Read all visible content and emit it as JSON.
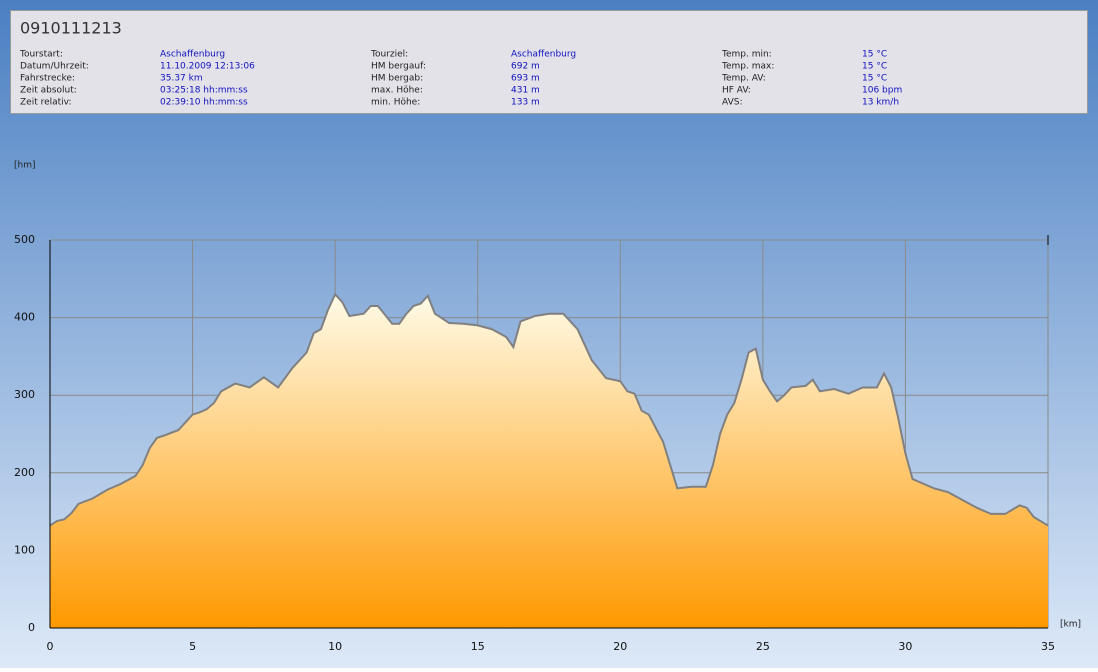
{
  "header": {
    "title": "0910111213",
    "columns": [
      [
        {
          "label": "Tourstart:",
          "value": "Aschaffenburg"
        },
        {
          "label": "Datum/Uhrzeit:",
          "value": "11.10.2009 12:13:06"
        },
        {
          "label": "Fahrstrecke:",
          "value": "35.37 km"
        },
        {
          "label": "Zeit absolut:",
          "value": "03:25:18 hh:mm:ss"
        },
        {
          "label": "Zeit relativ:",
          "value": "02:39:10 hh:mm:ss"
        }
      ],
      [
        {
          "label": "Tourziel:",
          "value": "Aschaffenburg"
        },
        {
          "label": "HM bergauf:",
          "value": "692 m"
        },
        {
          "label": "HM bergab:",
          "value": "693 m"
        },
        {
          "label": "max. Höhe:",
          "value": "431 m"
        },
        {
          "label": "min. Höhe:",
          "value": "133 m"
        }
      ],
      [
        {
          "label": "Temp. min:",
          "value": "15 °C"
        },
        {
          "label": "Temp. max:",
          "value": "15 °C"
        },
        {
          "label": "Temp. AV:",
          "value": "15 °C"
        },
        {
          "label": "HF AV:",
          "value": "106 bpm"
        },
        {
          "label": "AVS:",
          "value": "13 km/h"
        }
      ]
    ]
  },
  "chart_data": {
    "type": "area",
    "y_label": "[hm]",
    "x_label": "[km]",
    "x": [
      0,
      0.25,
      0.5,
      0.75,
      1,
      1.5,
      2,
      2.5,
      3,
      3.25,
      3.5,
      3.75,
      4,
      4.5,
      5,
      5.25,
      5.5,
      5.75,
      6,
      6.25,
      6.5,
      7,
      7.5,
      8,
      8.5,
      9,
      9.25,
      9.5,
      9.75,
      10,
      10.25,
      10.5,
      11,
      11.25,
      11.5,
      12,
      12.25,
      12.5,
      12.75,
      13,
      13.25,
      13.5,
      14,
      14.5,
      15,
      15.5,
      16,
      16.25,
      16.5,
      17,
      17.5,
      18,
      18.5,
      19,
      19.5,
      20,
      20.25,
      20.5,
      20.75,
      21,
      21.5,
      21.75,
      22,
      22.5,
      23,
      23.25,
      23.5,
      23.75,
      24,
      24.25,
      24.5,
      24.75,
      25,
      25.25,
      25.5,
      25.75,
      26,
      26.5,
      26.75,
      27,
      27.5,
      28,
      28.5,
      29,
      29.25,
      29.5,
      29.75,
      30,
      30.25,
      30.5,
      31,
      31.5,
      32,
      32.5,
      33,
      33.5,
      34,
      34.25,
      34.5,
      35
    ],
    "values": [
      132,
      138,
      140,
      148,
      160,
      167,
      178,
      186,
      196,
      210,
      232,
      245,
      248,
      255,
      275,
      278,
      282,
      290,
      305,
      310,
      315,
      310,
      323,
      310,
      335,
      355,
      380,
      385,
      410,
      430,
      420,
      402,
      405,
      415,
      415,
      392,
      392,
      405,
      415,
      418,
      428,
      405,
      393,
      392,
      390,
      385,
      375,
      362,
      395,
      402,
      405,
      405,
      385,
      345,
      322,
      318,
      305,
      302,
      280,
      275,
      240,
      210,
      180,
      182,
      182,
      210,
      250,
      275,
      290,
      320,
      355,
      360,
      320,
      305,
      292,
      300,
      310,
      312,
      320,
      305,
      308,
      302,
      310,
      310,
      328,
      310,
      270,
      225,
      192,
      188,
      180,
      175,
      165,
      155,
      147,
      147,
      158,
      155,
      143,
      132
    ],
    "line_color": "#808080",
    "fill_top": "#fffbe8",
    "fill_bottom": "#ff9900",
    "xlim": [
      0,
      35
    ],
    "ylim": [
      0,
      500
    ],
    "xticks": [
      0,
      5,
      10,
      15,
      20,
      25,
      30,
      35
    ],
    "yticks": [
      0,
      100,
      200,
      300,
      400,
      500
    ],
    "grid": true
  }
}
